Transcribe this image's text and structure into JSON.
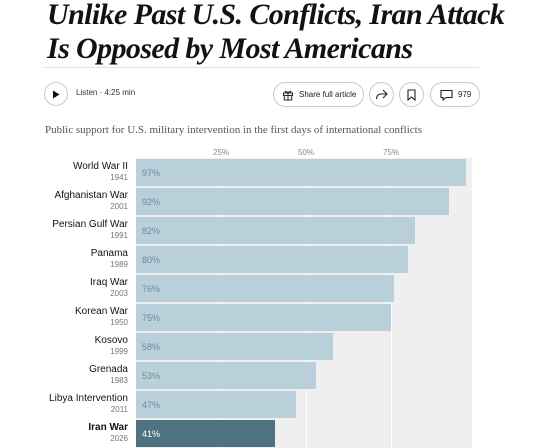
{
  "article": {
    "headline_line1": "Unlike Past U.S. Conflicts, Iran Attack",
    "headline_line2": "Is Opposed by Most Americans"
  },
  "toolbar": {
    "listen_label": "Listen · 4:25 min",
    "share_label": "Share full article",
    "comment_count": "979"
  },
  "colors": {
    "bar": "#b9d0da",
    "bar_highlight": "#4f7283",
    "plot_bg": "#efefef"
  },
  "chart_data": {
    "type": "bar",
    "orientation": "horizontal",
    "title": "Public support for U.S. military intervention in the first days of international conflicts",
    "xlim": [
      0,
      100
    ],
    "ticks": [
      25,
      50,
      75
    ],
    "tick_labels": [
      "25%",
      "50%",
      "75%"
    ],
    "categories": [
      "World War II",
      "Afghanistan War",
      "Persian Gulf War",
      "Panama",
      "Iraq War",
      "Korean War",
      "Kosovo",
      "Grenada",
      "Libya Intervention",
      "Iran War"
    ],
    "years": [
      "1941",
      "2001",
      "1991",
      "1989",
      "2003",
      "1950",
      "1999",
      "1983",
      "2011",
      "2026"
    ],
    "values": [
      97,
      92,
      82,
      80,
      76,
      75,
      58,
      53,
      47,
      41
    ],
    "value_labels": [
      "97%",
      "92%",
      "82%",
      "80%",
      "76%",
      "75%",
      "58%",
      "53%",
      "47%",
      "41%"
    ],
    "highlight": "Iran War"
  }
}
